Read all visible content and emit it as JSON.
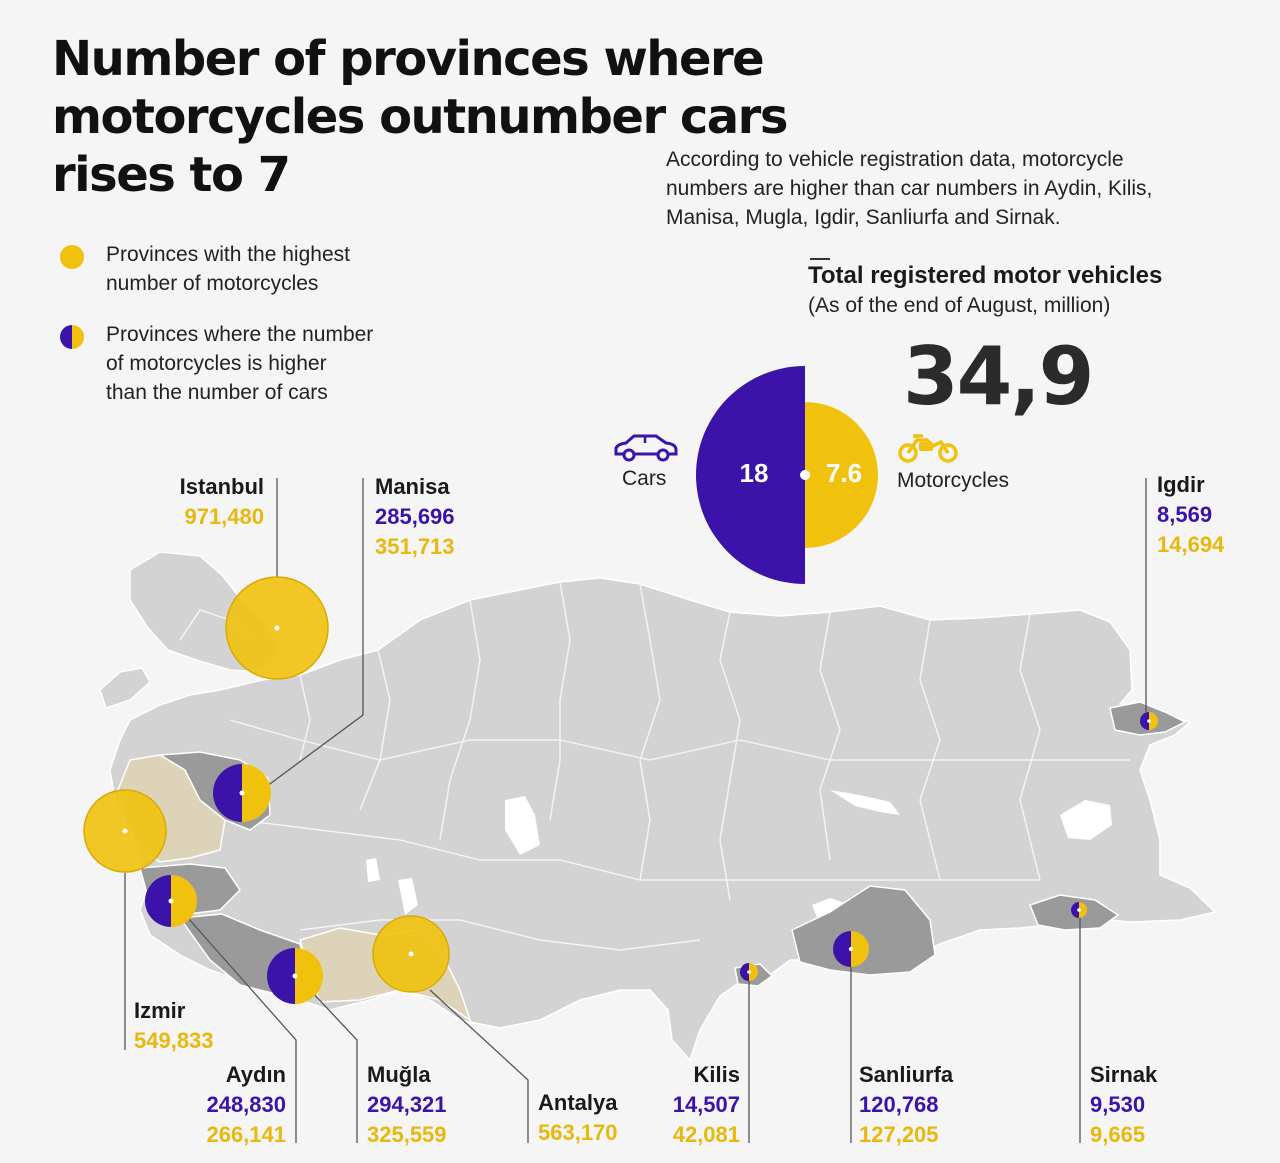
{
  "title_lines": [
    "Number of provinces where",
    "motorcycles outnumber cars",
    "rises to 7"
  ],
  "intro_lines": [
    "According to vehicle registration data, motorcycle",
    "numbers are higher than car numbers in Aydin, Kilis,",
    "Manisa, Mugla, Igdir, Sanliurfa and Sirnak."
  ],
  "legend": [
    {
      "lines": [
        "Provinces with the highest",
        "number of motorcycles"
      ],
      "marker": "yellow"
    },
    {
      "lines": [
        "Provinces where the number",
        "of motorcycles is higher",
        "than the number of cars"
      ],
      "marker": "split"
    }
  ],
  "totals": {
    "heading": "Total registered motor vehicles",
    "subheading": "(As of the end of August, million)",
    "total": "34,9",
    "cars_label": "Cars",
    "cars_value": "18",
    "moto_label": "Motorcycles",
    "moto_value": "7.6",
    "cars_icon": "car-icon",
    "moto_icon": "motorcycle-icon"
  },
  "colors": {
    "cars": "#3c13a8",
    "motorcycles": "#f0c20d",
    "map": "#d3d3d3",
    "highlight": "#9a9a9a",
    "highlight_light": "#ddd3b8"
  },
  "provinces": [
    {
      "name": "Istanbul",
      "motorcycles": "971,480"
    },
    {
      "name": "Manisa",
      "cars": "285,696",
      "motorcycles": "351,713"
    },
    {
      "name": "Igdir",
      "cars": "8,569",
      "motorcycles": "14,694"
    },
    {
      "name": "Izmir",
      "motorcycles": "549,833"
    },
    {
      "name": "Aydın",
      "cars": "248,830",
      "motorcycles": "266,141"
    },
    {
      "name": "Muğla",
      "cars": "294,321",
      "motorcycles": "325,559"
    },
    {
      "name": "Antalya",
      "motorcycles": "563,170"
    },
    {
      "name": "Kilis",
      "cars": "14,507",
      "motorcycles": "42,081"
    },
    {
      "name": "Sanliurfa",
      "cars": "120,768",
      "motorcycles": "127,205"
    },
    {
      "name": "Sirnak",
      "cars": "9,530",
      "motorcycles": "9,665"
    }
  ]
}
